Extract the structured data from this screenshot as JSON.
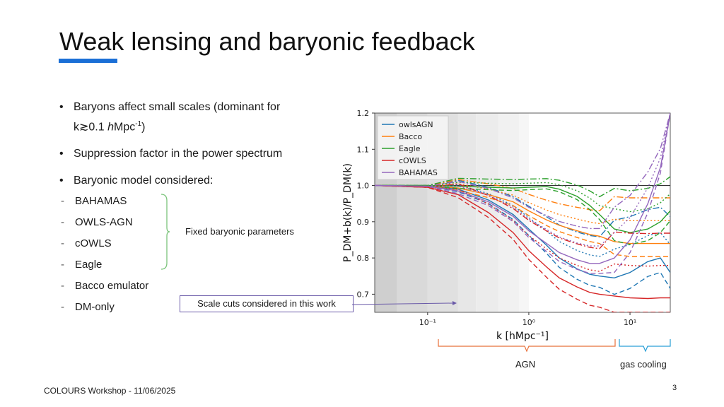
{
  "slide": {
    "title": "Weak lensing and baryonic feedback",
    "bullets": [
      {
        "text": "Baryons affect small scales (dominant for",
        "line2_prefix": "k",
        "line2_sym": "≳0.1 ",
        "line2_h": "h",
        "line2_unit": "Mpc",
        "line2_exp": "-1",
        "line2_suffix": ")"
      },
      {
        "text": "Suppression factor in the power spectrum"
      },
      {
        "text": "Baryonic model considered:"
      }
    ],
    "models": [
      "BAHAMAS",
      "OWLS-AGN",
      "cOWLS",
      "Eagle",
      "Bacco emulator",
      "DM-only"
    ],
    "fixed_label": "Fixed baryonic parameters",
    "scale_cut_label": "Scale cuts considered in this work",
    "agn_label": "AGN",
    "gas_label": "gas cooling",
    "footer": "COLOURS Workshop - 11/06/2025",
    "page_number": "3"
  },
  "chart_data": {
    "type": "line",
    "xscale": "log",
    "xlim": [
      0.03,
      25
    ],
    "ylim": [
      0.65,
      1.2
    ],
    "xlabel": "k [hMpc⁻¹]",
    "ylabel": "P_DM+b(k)/P_DM(k)",
    "xticks": [
      {
        "v": 0.1,
        "label": "10⁻¹"
      },
      {
        "v": 1,
        "label": "10⁰"
      },
      {
        "v": 10,
        "label": "10¹"
      }
    ],
    "yticks": [
      0.7,
      0.8,
      0.9,
      1.0,
      1.1,
      1.2
    ],
    "ytick_labels": [
      "0.7",
      "0.8",
      "0.9",
      "1.0",
      "1.1",
      "1.2"
    ],
    "legend": {
      "position": "top-left"
    },
    "shading": "grey bands for scale cuts, k < 1",
    "series": [
      {
        "name": "owlsAGN",
        "color": "#1f77b4",
        "x": [
          0.03,
          0.1,
          0.2,
          0.4,
          0.7,
          1.0,
          1.5,
          2,
          3,
          4,
          5,
          7,
          10,
          15,
          20,
          25
        ],
        "y": [
          1.0,
          0.998,
          0.99,
          0.96,
          0.92,
          0.88,
          0.835,
          0.8,
          0.77,
          0.755,
          0.75,
          0.745,
          0.76,
          0.79,
          0.8,
          0.76
        ]
      },
      {
        "name": "Bacco",
        "color": "#ff7f0e",
        "x": [
          0.03,
          0.1,
          0.2,
          0.4,
          0.7,
          1.0,
          1.5,
          2,
          3,
          4,
          5,
          7,
          10,
          15,
          20,
          25
        ],
        "y": [
          1.0,
          0.999,
          0.993,
          0.975,
          0.955,
          0.93,
          0.905,
          0.89,
          0.875,
          0.865,
          0.86,
          0.845,
          0.84,
          0.84,
          0.84,
          0.84
        ]
      },
      {
        "name": "Eagle",
        "color": "#2ca02c",
        "x": [
          0.03,
          0.1,
          0.2,
          0.4,
          0.7,
          1.0,
          1.5,
          2,
          3,
          4,
          5,
          7,
          10,
          15,
          20,
          25
        ],
        "y": [
          1.0,
          1.0,
          0.998,
          0.995,
          0.993,
          0.995,
          0.997,
          0.99,
          0.97,
          0.945,
          0.92,
          0.88,
          0.87,
          0.88,
          0.9,
          0.93
        ]
      },
      {
        "name": "cOWLS",
        "color": "#d62728",
        "x": [
          0.03,
          0.1,
          0.2,
          0.4,
          0.7,
          1.0,
          1.5,
          2,
          3,
          4,
          5,
          7,
          10,
          15,
          20,
          25
        ],
        "y": [
          1.0,
          0.995,
          0.975,
          0.925,
          0.87,
          0.82,
          0.775,
          0.745,
          0.72,
          0.705,
          0.7,
          0.695,
          0.69,
          0.688,
          0.69,
          0.69
        ]
      },
      {
        "name": "BAHAMAS",
        "color": "#9467bd",
        "x": [
          0.03,
          0.1,
          0.2,
          0.4,
          0.7,
          1.0,
          1.5,
          2,
          3,
          4,
          5,
          7,
          10,
          15,
          20,
          25
        ],
        "y": [
          1.0,
          0.998,
          0.985,
          0.955,
          0.915,
          0.875,
          0.84,
          0.815,
          0.795,
          0.785,
          0.785,
          0.8,
          0.85,
          0.95,
          1.05,
          1.2
        ]
      }
    ],
    "reference_line": {
      "y": 1.0,
      "color": "#333333"
    }
  }
}
